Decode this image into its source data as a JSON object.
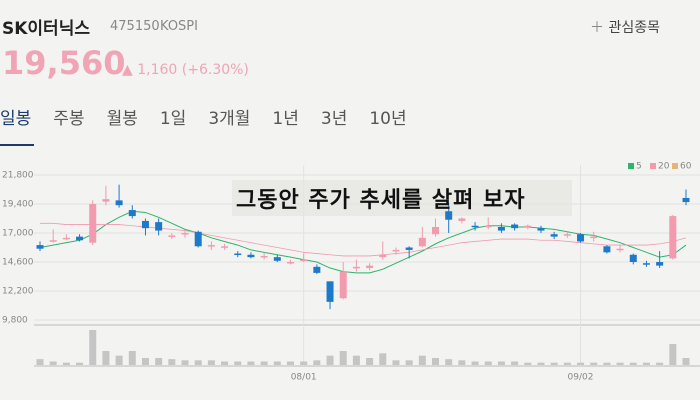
{
  "header": {
    "name": "SK이터닉스",
    "code": "475150",
    "market": "KOSPI",
    "watch": "관심종목",
    "price": "19,560",
    "change": "1,160",
    "change_pct": "(+6.30%)"
  },
  "tabs": [
    "일봉",
    "주봉",
    "월봉",
    "1일",
    "3개월",
    "1년",
    "3년",
    "10년"
  ],
  "chart_data": {
    "type": "candlestick",
    "annotation": "그동안 주가 추세를 살펴 보자",
    "categories": [
      null,
      null,
      null,
      null,
      null,
      null,
      null,
      null,
      null,
      null,
      null,
      null,
      null,
      null,
      null,
      null,
      null,
      null,
      null,
      null,
      "08/01",
      null,
      null,
      null,
      null,
      null,
      null,
      null,
      null,
      null,
      null,
      null,
      null,
      null,
      null,
      null,
      null,
      null,
      null,
      null,
      null,
      "09/02",
      null,
      null,
      null,
      null,
      null,
      null,
      null,
      null
    ],
    "open": [
      16000,
      16300,
      16500,
      16700,
      16200,
      19600,
      19700,
      18900,
      18000,
      17900,
      16700,
      16900,
      17100,
      15900,
      15800,
      15300,
      15200,
      15000,
      15000,
      14500,
      14700,
      14200,
      13000,
      11600,
      14100,
      14100,
      15000,
      15500,
      15800,
      15900,
      16900,
      18800,
      18000,
      17600,
      17500,
      17500,
      17700,
      17500,
      17400,
      16900,
      16800,
      16900,
      16600,
      15900,
      15600,
      15200,
      14500,
      14600,
      14900,
      19900
    ],
    "close": [
      15700,
      16400,
      16600,
      16400,
      19400,
      19800,
      19300,
      18400,
      17400,
      17200,
      16800,
      17000,
      15900,
      16000,
      15900,
      15200,
      15000,
      15100,
      14700,
      14600,
      14800,
      13700,
      11300,
      13800,
      14200,
      14300,
      15200,
      15600,
      15600,
      16600,
      17500,
      18100,
      18200,
      17500,
      17600,
      17200,
      17400,
      17600,
      17200,
      16700,
      16900,
      16300,
      16700,
      15400,
      15700,
      14600,
      14400,
      14300,
      18400,
      19560
    ],
    "high": [
      16300,
      17300,
      16900,
      16900,
      19700,
      20900,
      21000,
      19300,
      18200,
      18200,
      17000,
      17200,
      17200,
      16300,
      16100,
      15500,
      15400,
      15400,
      15200,
      14800,
      15300,
      14400,
      13000,
      14600,
      14800,
      14500,
      16300,
      15800,
      15900,
      17500,
      18200,
      19500,
      18300,
      17900,
      18300,
      17800,
      17800,
      17700,
      17600,
      17100,
      17100,
      17000,
      17100,
      16000,
      16000,
      15300,
      14700,
      15500,
      18500,
      20600
    ],
    "low": [
      15500,
      16200,
      16400,
      16300,
      16000,
      19300,
      19100,
      18200,
      16800,
      16800,
      16500,
      16600,
      15800,
      15600,
      15600,
      15000,
      14900,
      14800,
      14600,
      14400,
      14600,
      13600,
      10700,
      11500,
      13800,
      13900,
      14800,
      15200,
      14900,
      15800,
      16700,
      17000,
      17800,
      17200,
      17300,
      17000,
      17200,
      17300,
      17000,
      16500,
      16600,
      16200,
      16300,
      15300,
      15400,
      14400,
      14200,
      14100,
      14800,
      19300
    ],
    "volume": [
      5,
      3,
      2,
      2,
      30,
      12,
      8,
      12,
      6,
      6,
      5,
      4,
      4,
      4,
      3,
      3,
      3,
      3,
      3,
      3,
      3,
      4,
      8,
      12,
      8,
      6,
      10,
      4,
      4,
      8,
      6,
      5,
      4,
      3,
      3,
      3,
      3,
      2,
      2,
      2,
      2,
      2,
      2,
      2,
      2,
      2,
      2,
      2,
      18,
      6
    ],
    "up_color": "#f29aae",
    "down_color": "#1e7ac8",
    "volume_color": "#c5c5c5",
    "moving_averages": [
      {
        "name": "5",
        "color": "#2fb36e",
        "values": [
          15800,
          16000,
          16200,
          16400,
          16900,
          17700,
          18300,
          18800,
          18700,
          18300,
          17800,
          17300,
          17000,
          16600,
          16300,
          16000,
          15600,
          15400,
          15200,
          15000,
          14800,
          14600,
          14100,
          13800,
          13700,
          13700,
          14000,
          14500,
          15000,
          15500,
          16100,
          16600,
          17000,
          17400,
          17600,
          17600,
          17500,
          17500,
          17400,
          17300,
          17100,
          16900,
          16800,
          16500,
          16200,
          15800,
          15400,
          15000,
          15200,
          16000
        ]
      },
      {
        "name": "20",
        "color": "#f29aae",
        "values": [
          17800,
          17800,
          17700,
          17700,
          17700,
          17700,
          17700,
          17600,
          17500,
          17400,
          17300,
          17200,
          17000,
          16800,
          16600,
          16400,
          16200,
          16000,
          15800,
          15600,
          15400,
          15300,
          15200,
          15100,
          15100,
          15100,
          15200,
          15300,
          15400,
          15600,
          15800,
          16000,
          16200,
          16300,
          16400,
          16500,
          16500,
          16500,
          16400,
          16400,
          16300,
          16200,
          16100,
          16000,
          16000,
          16000,
          16000,
          16100,
          16300,
          16600
        ]
      },
      {
        "name": "60",
        "color": "#e8b27a",
        "values": [
          null,
          null,
          null,
          null,
          null,
          null,
          null,
          null,
          null,
          null,
          null,
          null,
          null,
          null,
          null,
          null,
          null,
          null,
          null,
          null,
          null,
          null,
          null,
          null,
          null,
          null,
          null,
          null,
          null,
          null,
          null,
          null,
          null,
          null,
          null,
          null,
          null,
          null,
          null,
          null,
          null,
          null,
          null,
          null,
          null,
          null,
          null,
          null,
          null,
          null
        ]
      }
    ],
    "ylim": [
      9800,
      21800
    ],
    "yticks": [
      {
        "value": 9800,
        "label": "9,800"
      },
      {
        "value": 12200,
        "label": "12,200"
      },
      {
        "value": 14600,
        "label": "14,600"
      },
      {
        "value": 17000,
        "label": "17,000"
      },
      {
        "value": 19400,
        "label": "19,400"
      },
      {
        "value": 21800,
        "label": "21,800"
      }
    ]
  }
}
